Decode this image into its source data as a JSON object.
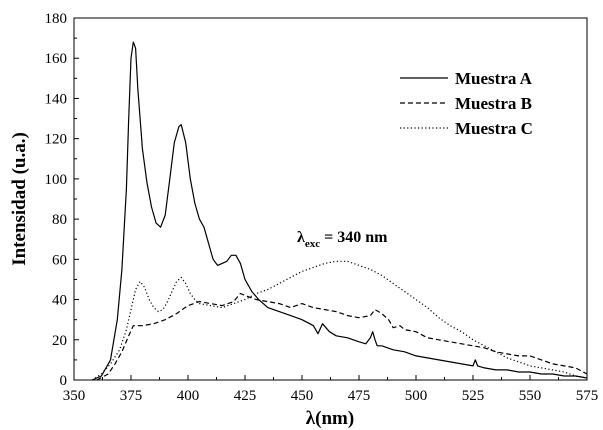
{
  "chart_data": {
    "type": "line",
    "xlabel": "λ(nm)",
    "ylabel": "Intensidad (u.a.)",
    "xlim": [
      350,
      575
    ],
    "ylim": [
      0,
      180
    ],
    "x_ticks": [
      350,
      375,
      400,
      425,
      450,
      475,
      500,
      525,
      550,
      575
    ],
    "y_ticks": [
      0,
      20,
      40,
      60,
      80,
      100,
      120,
      140,
      160,
      180
    ],
    "grid": false,
    "legend_position": "top-right",
    "annotation": {
      "symbol": "λ",
      "subscript": "exc",
      "text": " = 340 nm",
      "x": 447,
      "y": 62
    },
    "series": [
      {
        "name": "Muestra A",
        "style": "solid",
        "color": "#000000",
        "x": [
          358,
          362,
          366,
          369,
          371,
          373,
          374,
          375,
          376,
          377,
          378,
          380,
          382,
          384,
          386,
          388,
          390,
          392,
          394,
          396,
          397,
          399,
          401,
          403,
          405,
          407,
          409,
          411,
          413,
          415,
          417,
          419,
          421,
          423,
          425,
          428,
          431,
          435,
          440,
          445,
          450,
          455,
          457,
          459,
          462,
          465,
          470,
          475,
          478,
          480,
          481,
          482,
          483,
          485,
          490,
          495,
          500,
          505,
          510,
          515,
          520,
          525,
          526,
          527,
          530,
          535,
          540,
          545,
          550,
          555,
          560,
          565,
          570,
          575
        ],
        "values": [
          0,
          2,
          10,
          30,
          55,
          95,
          130,
          160,
          168,
          165,
          145,
          115,
          98,
          86,
          78,
          76,
          82,
          100,
          118,
          126,
          127,
          118,
          100,
          88,
          80,
          76,
          68,
          60,
          57,
          58,
          59,
          62,
          62,
          58,
          50,
          44,
          40,
          36,
          34,
          32,
          30,
          27,
          23,
          28,
          24,
          22,
          21,
          19,
          18,
          21,
          24,
          20,
          17,
          17,
          15,
          14,
          12,
          11,
          10,
          9,
          8,
          7,
          10,
          7,
          6,
          5,
          5,
          4,
          4,
          3,
          3,
          2,
          2,
          1
        ]
      },
      {
        "name": "Muestra B",
        "style": "dashed",
        "color": "#000000",
        "x": [
          360,
          365,
          368,
          371,
          374,
          376,
          378,
          380,
          385,
          390,
          395,
          400,
          405,
          410,
          415,
          420,
          423,
          425,
          430,
          435,
          440,
          445,
          450,
          455,
          460,
          465,
          470,
          475,
          480,
          482,
          485,
          488,
          490,
          493,
          495,
          500,
          505,
          510,
          515,
          520,
          525,
          530,
          535,
          540,
          545,
          550,
          555,
          560,
          565,
          570,
          575
        ],
        "values": [
          0,
          3,
          8,
          14,
          22,
          27,
          27,
          27,
          28,
          30,
          33,
          37,
          39,
          38,
          37,
          39,
          43,
          42,
          40,
          39,
          38,
          36,
          38,
          36,
          35,
          34,
          32,
          31,
          32,
          35,
          33,
          30,
          26,
          27,
          25,
          24,
          21,
          20,
          19,
          18,
          17,
          16,
          14,
          13,
          12,
          12,
          10,
          8,
          7,
          6,
          3
        ]
      },
      {
        "name": "Muestra C",
        "style": "dotted",
        "color": "#000000",
        "x": [
          358,
          362,
          366,
          370,
          373,
          375,
          377,
          379,
          381,
          383,
          385,
          387,
          389,
          391,
          393,
          395,
          397,
          399,
          401,
          403,
          405,
          410,
          415,
          420,
          425,
          430,
          435,
          440,
          445,
          450,
          455,
          460,
          465,
          470,
          475,
          480,
          485,
          490,
          495,
          500,
          505,
          510,
          515,
          520,
          525,
          530,
          535,
          540,
          545,
          550,
          555,
          560,
          565,
          570,
          575
        ],
        "values": [
          0,
          3,
          8,
          15,
          25,
          35,
          45,
          49,
          46,
          40,
          36,
          34,
          35,
          39,
          44,
          49,
          51,
          48,
          43,
          40,
          38,
          37,
          36,
          38,
          40,
          43,
          45,
          48,
          51,
          54,
          56,
          58,
          59,
          59,
          57,
          55,
          52,
          48,
          44,
          40,
          36,
          31,
          27,
          24,
          20,
          17,
          14,
          11,
          9,
          7,
          6,
          5,
          4,
          2,
          1
        ]
      }
    ]
  }
}
